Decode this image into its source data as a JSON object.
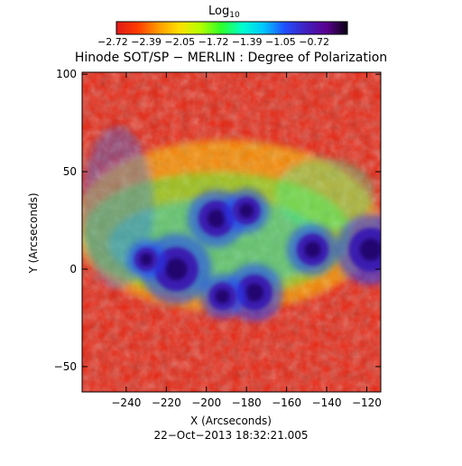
{
  "colorbar": {
    "title": "Log",
    "title_sub": "10",
    "tick_text": "−2.72 −2.39 −2.05 −1.72 −1.39 −1.05 −0.72",
    "stops": [
      "#e01a1a",
      "#ff3b00",
      "#ff9a00",
      "#ffe000",
      "#b6ff00",
      "#2bff2b",
      "#00ffd0",
      "#00c8ff",
      "#2050ff",
      "#4020c0",
      "#5a0090",
      "#0a0010"
    ]
  },
  "plot": {
    "title": "Hinode SOT/SP − MERLIN : Degree of Polarization",
    "timestamp": "22−Oct−2013 18:32:21.005"
  },
  "chart_data": {
    "type": "heatmap",
    "title": "Hinode SOT/SP − MERLIN : Degree of Polarization",
    "xlabel": "X (Arcseconds)",
    "ylabel": "Y (Arcseconds)",
    "xlim": [
      -262,
      -113
    ],
    "ylim": [
      -63,
      101
    ],
    "xticks": [
      -240,
      -220,
      -200,
      -180,
      -160,
      -140,
      -120
    ],
    "yticks": [
      -50,
      0,
      50,
      100
    ],
    "colorbar": {
      "label": "Log10",
      "min": -2.72,
      "max": -0.72,
      "ticks": [
        -2.72,
        -2.39,
        -2.05,
        -1.72,
        -1.39,
        -1.05,
        -0.72
      ]
    },
    "features": [
      {
        "type": "blob",
        "x": -215,
        "y": 0,
        "r": 11,
        "value": -0.8
      },
      {
        "type": "blob",
        "x": -195,
        "y": 26,
        "r": 9,
        "value": -0.9
      },
      {
        "type": "blob",
        "x": -180,
        "y": 30,
        "r": 7,
        "value": -1.0
      },
      {
        "type": "blob",
        "x": -176,
        "y": -12,
        "r": 9,
        "value": -0.85
      },
      {
        "type": "blob",
        "x": -192,
        "y": -14,
        "r": 7,
        "value": -0.9
      },
      {
        "type": "blob",
        "x": -147,
        "y": 10,
        "r": 8,
        "value": -0.9
      },
      {
        "type": "blob",
        "x": -118,
        "y": 10,
        "r": 11,
        "value": -0.8
      },
      {
        "type": "blob",
        "x": -230,
        "y": 5,
        "r": 6,
        "value": -1.0
      }
    ]
  }
}
